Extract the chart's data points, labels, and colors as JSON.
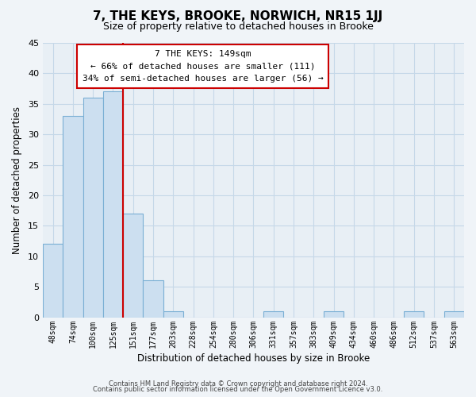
{
  "title": "7, THE KEYS, BROOKE, NORWICH, NR15 1JJ",
  "subtitle": "Size of property relative to detached houses in Brooke",
  "xlabel": "Distribution of detached houses by size in Brooke",
  "ylabel": "Number of detached properties",
  "bar_labels": [
    "48sqm",
    "74sqm",
    "100sqm",
    "125sqm",
    "151sqm",
    "177sqm",
    "203sqm",
    "228sqm",
    "254sqm",
    "280sqm",
    "306sqm",
    "331sqm",
    "357sqm",
    "383sqm",
    "409sqm",
    "434sqm",
    "460sqm",
    "486sqm",
    "512sqm",
    "537sqm",
    "563sqm"
  ],
  "bar_values": [
    12,
    33,
    36,
    37,
    17,
    6,
    1,
    0,
    0,
    0,
    0,
    1,
    0,
    0,
    1,
    0,
    0,
    0,
    1,
    0,
    1
  ],
  "bar_color": "#ccdff0",
  "bar_edge_color": "#7aafd4",
  "highlight_line_color": "#cc0000",
  "ylim": [
    0,
    45
  ],
  "yticks": [
    0,
    5,
    10,
    15,
    20,
    25,
    30,
    35,
    40,
    45
  ],
  "annotation_title": "7 THE KEYS: 149sqm",
  "annotation_line1": "← 66% of detached houses are smaller (111)",
  "annotation_line2": "34% of semi-detached houses are larger (56) →",
  "annotation_box_color": "#ffffff",
  "annotation_box_edge": "#cc0000",
  "footer_line1": "Contains HM Land Registry data © Crown copyright and database right 2024.",
  "footer_line2": "Contains public sector information licensed under the Open Government Licence v3.0.",
  "background_color": "#f0f4f8",
  "plot_bg_color": "#e8eff5",
  "grid_color": "#c5d8e8",
  "red_line_bar_index": 3
}
